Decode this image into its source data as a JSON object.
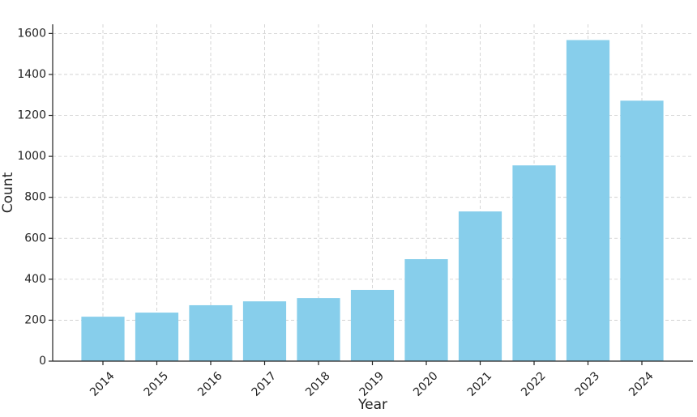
{
  "chart_data": {
    "type": "bar",
    "x_label": "Year",
    "y_label": "Count",
    "categories": [
      "2014",
      "2015",
      "2016",
      "2017",
      "2018",
      "2019",
      "2020",
      "2021",
      "2022",
      "2023",
      "2024"
    ],
    "values": [
      217,
      237,
      273,
      292,
      308,
      348,
      498,
      731,
      956,
      1568,
      1272
    ],
    "color": "#87ceeb",
    "ylim": [
      0,
      1645
    ],
    "yticks": [
      0,
      200,
      400,
      600,
      800,
      1000,
      1200,
      1400,
      1600
    ],
    "grid": true
  }
}
